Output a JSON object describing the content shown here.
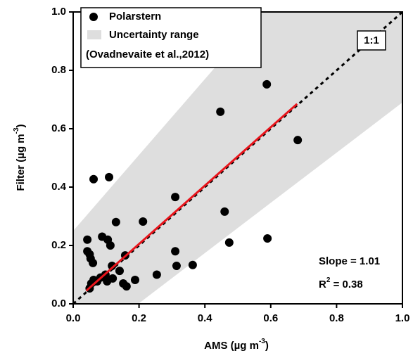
{
  "chart_data": {
    "type": "scatter",
    "x_label": {
      "text": "AMS (µg m",
      "sup": "-3",
      "end": ")"
    },
    "y_label": {
      "text": "Filter (µg m",
      "sup": "-3",
      "end": ")"
    },
    "xlim": [
      0,
      1
    ],
    "ylim": [
      0,
      1
    ],
    "xticks": [
      {
        "value": 0,
        "label": "0.0"
      },
      0.2,
      0.4,
      0.6,
      0.8,
      {
        "value": 1,
        "label": "1.0"
      }
    ],
    "yticks": [
      {
        "value": 0,
        "label": "0.0"
      },
      0.2,
      0.4,
      0.6,
      0.8,
      {
        "value": 1,
        "label": "1.0"
      }
    ],
    "series": [
      {
        "name": "Polarstern",
        "color": "#000000",
        "x": [
          0.043,
          0.043,
          0.05,
          0.053,
          0.06,
          0.062,
          0.05,
          0.055,
          0.062,
          0.073,
          0.088,
          0.083,
          0.098,
          0.105,
          0.109,
          0.113,
          0.118,
          0.103,
          0.12,
          0.13,
          0.141,
          0.152,
          0.158,
          0.162,
          0.188,
          0.212,
          0.254,
          0.31,
          0.31,
          0.314,
          0.363,
          0.46,
          0.474,
          0.447,
          0.588,
          0.59,
          0.682
        ],
        "y": [
          0.22,
          0.18,
          0.17,
          0.155,
          0.14,
          0.427,
          0.053,
          0.07,
          0.082,
          0.077,
          0.23,
          0.09,
          0.1,
          0.22,
          0.434,
          0.2,
          0.13,
          0.077,
          0.087,
          0.28,
          0.113,
          0.07,
          0.166,
          0.06,
          0.082,
          0.282,
          0.1,
          0.366,
          0.18,
          0.13,
          0.133,
          0.316,
          0.21,
          0.658,
          0.752,
          0.224,
          0.561
        ]
      }
    ],
    "uncertainty": {
      "name": "Uncertainty range",
      "source": "(Ovadnevaite et al.,2012)",
      "color": "#dedede",
      "x": [
        0,
        1
      ],
      "upper": [
        0.25,
        1.55
      ],
      "lower": [
        -0.17,
        0.69
      ]
    },
    "reference": {
      "label": "1:1",
      "x": [
        0,
        1
      ],
      "y": [
        0,
        1
      ]
    },
    "fit": {
      "color": "#e8141b",
      "x": [
        0.04,
        0.68
      ],
      "y": [
        0.045,
        0.685
      ]
    },
    "slope_text": "Slope = 1.01",
    "r2_text": {
      "text": "R",
      "sup": "2",
      "end": " = 0.38"
    }
  }
}
